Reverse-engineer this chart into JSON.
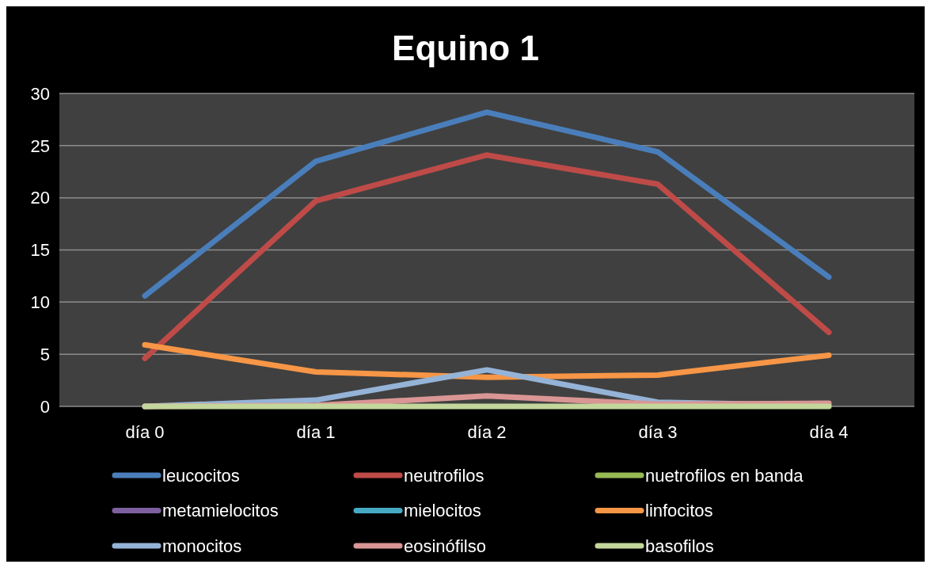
{
  "chart_data": {
    "type": "line",
    "title": "Equino 1",
    "categories": [
      "día 0",
      "día 1",
      "día 2",
      "día 3",
      "día 4"
    ],
    "series": [
      {
        "name": "leucocitos",
        "color": "#4a7ebb",
        "values": [
          10.6,
          23.5,
          28.2,
          24.4,
          12.4
        ]
      },
      {
        "name": "neutrofilos",
        "color": "#be4b48",
        "values": [
          4.6,
          19.7,
          24.1,
          21.3,
          7.1
        ]
      },
      {
        "name": "nuetrofilos en banda",
        "color": "#98b954",
        "values": [
          null,
          null,
          null,
          null,
          null
        ]
      },
      {
        "name": "metamielocitos",
        "color": "#7d60a0",
        "values": [
          null,
          null,
          null,
          null,
          null
        ]
      },
      {
        "name": "mielocitos",
        "color": "#46aac5",
        "values": [
          null,
          null,
          null,
          null,
          null
        ]
      },
      {
        "name": "linfocitos",
        "color": "#f79646",
        "values": [
          5.9,
          3.3,
          2.8,
          3.0,
          4.9
        ]
      },
      {
        "name": "monocitos",
        "color": "#95b3d7",
        "values": [
          0,
          0.6,
          3.5,
          0.4,
          0.1
        ]
      },
      {
        "name": "eosinófilso",
        "color": "#d99694",
        "values": [
          0,
          0.1,
          1.0,
          0.2,
          0.3
        ]
      },
      {
        "name": "basofilos",
        "color": "#c3d69b",
        "values": [
          0,
          0,
          0,
          0,
          0
        ]
      }
    ],
    "ylim": [
      0,
      30
    ],
    "yticks": [
      0,
      5,
      10,
      15,
      20,
      25,
      30
    ],
    "grid": "y",
    "legend": "bottom",
    "marker": "none",
    "line_style": "solid"
  }
}
